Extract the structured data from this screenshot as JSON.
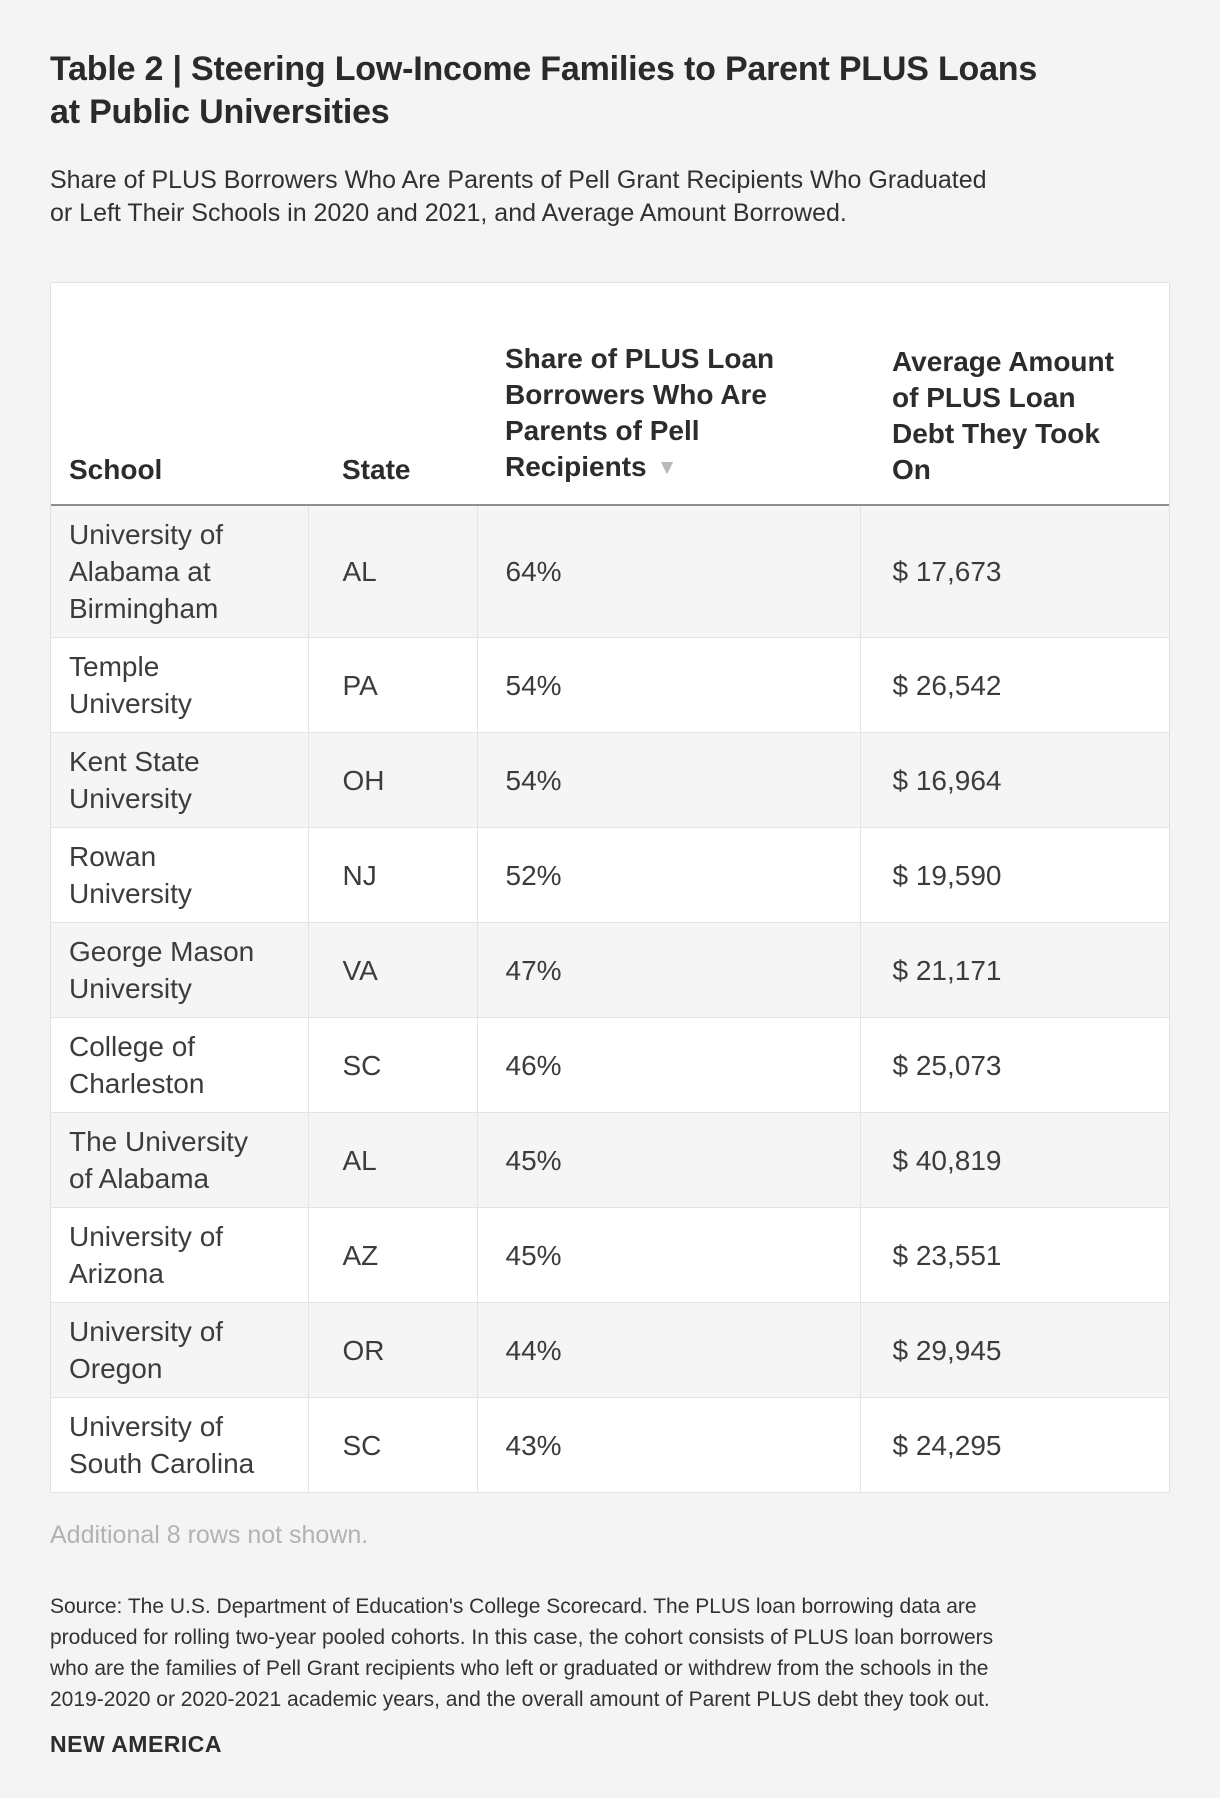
{
  "page": {
    "title": "Table 2 | Steering Low-Income Families to Parent PLUS Loans\nat Public Universities",
    "subtitle": "Share of PLUS Borrowers Who Are Parents of Pell Grant Recipients Who Graduated\nor Left Their Schools in 2020 and 2021, and Average Amount Borrowed.",
    "footnote": "Additional 8 rows not shown.",
    "source": "Source: The U.S. Department of Education's College Scorecard. The PLUS loan borrowing data are\nproduced for rolling two-year pooled cohorts. In this case, the cohort consists of PLUS loan borrowers\nwho are the families of Pell Grant recipients who left or graduated or withdrew from the schools in the\n2019-2020 or 2020-2021 academic years, and the overall amount of Parent PLUS debt they took out.",
    "brand": "NEW AMERICA"
  },
  "colors": {
    "page_background": "#f4f4f4",
    "table_background": "#ffffff",
    "zebra_row": "#f4f5f4",
    "grid_line": "#e4e4e4",
    "header_rule": "#8f8f8f",
    "muted_text": "#b2b2b2",
    "sort_icon": "#b9b9b9"
  },
  "table": {
    "columns": [
      {
        "label": "School"
      },
      {
        "label": "State"
      },
      {
        "label": "Share of PLUS Loan\nBorrowers Who Are\nParents of Pell\nRecipients",
        "sort_icon": "▼",
        "sort_state": "descending"
      },
      {
        "label": "Average Amount\nof PLUS Loan\nDebt They Took\nOn"
      }
    ],
    "rows": [
      {
        "school": "University of\nAlabama at\nBirmingham",
        "state": "AL",
        "share": "64%",
        "amount": "$ 17,673"
      },
      {
        "school": "Temple\nUniversity",
        "state": "PA",
        "share": "54%",
        "amount": "$ 26,542"
      },
      {
        "school": "Kent State\nUniversity",
        "state": "OH",
        "share": "54%",
        "amount": "$ 16,964"
      },
      {
        "school": "Rowan\nUniversity",
        "state": "NJ",
        "share": "52%",
        "amount": "$ 19,590"
      },
      {
        "school": "George Mason\nUniversity",
        "state": "VA",
        "share": "47%",
        "amount": "$ 21,171"
      },
      {
        "school": "College of\nCharleston",
        "state": "SC",
        "share": "46%",
        "amount": "$ 25,073"
      },
      {
        "school": "The University\nof Alabama",
        "state": "AL",
        "share": "45%",
        "amount": "$ 40,819"
      },
      {
        "school": "University of\nArizona",
        "state": "AZ",
        "share": "45%",
        "amount": "$ 23,551"
      },
      {
        "school": "University of\nOregon",
        "state": "OR",
        "share": "44%",
        "amount": "$ 29,945"
      },
      {
        "school": "University of\nSouth Carolina",
        "state": "SC",
        "share": "43%",
        "amount": "$ 24,295"
      }
    ]
  }
}
